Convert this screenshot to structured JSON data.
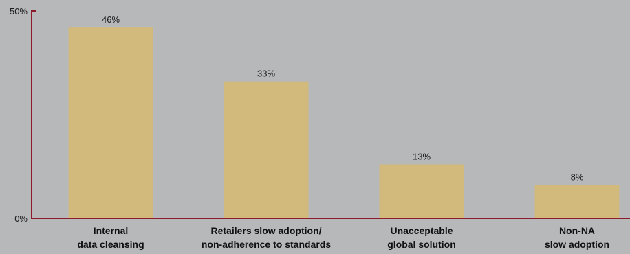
{
  "chart_data": {
    "type": "bar",
    "title": "",
    "xlabel": "",
    "ylabel": "",
    "ylim": [
      0,
      50
    ],
    "y_ticks": [
      "50%",
      "0%"
    ],
    "y_tick_values": [
      50,
      0
    ],
    "grid": false,
    "categories": [
      [
        "Internal",
        "data cleansing"
      ],
      [
        "Retailers slow adoption/",
        "non-adherence to standards"
      ],
      [
        "Unacceptable",
        "global solution"
      ],
      [
        "Non-NA",
        "slow adoption"
      ]
    ],
    "values": [
      46,
      33,
      13,
      8
    ],
    "data_labels": [
      "46%",
      "33%",
      "13%",
      "8%"
    ],
    "colors": {
      "background": "#b7b8ba",
      "bar": "#d2ba7d",
      "axis": "#8e1b2c"
    }
  }
}
